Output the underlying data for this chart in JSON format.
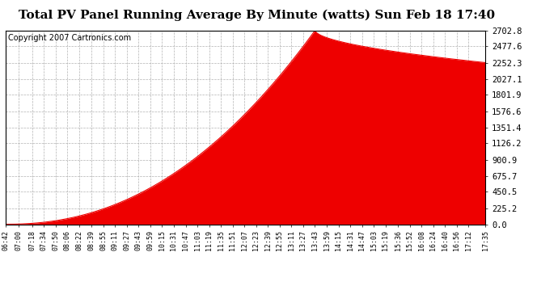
{
  "title": "Total PV Panel Running Average By Minute (watts) Sun Feb 18 17:40",
  "copyright": "Copyright 2007 Cartronics.com",
  "fill_color": "#ee0000",
  "line_color": "#ee0000",
  "bg_color": "#ffffff",
  "grid_color": "#aaaaaa",
  "border_color": "#000000",
  "ytick_labels": [
    "0.0",
    "225.2",
    "450.5",
    "675.7",
    "900.9",
    "1126.2",
    "1351.4",
    "1576.6",
    "1801.9",
    "2027.1",
    "2252.3",
    "2477.6",
    "2702.8"
  ],
  "ytick_values": [
    0.0,
    225.2,
    450.5,
    675.7,
    900.9,
    1126.2,
    1351.4,
    1576.6,
    1801.9,
    2027.1,
    2252.3,
    2477.6,
    2702.8
  ],
  "ymax": 2702.8,
  "xtick_labels": [
    "06:42",
    "07:00",
    "07:18",
    "07:34",
    "07:50",
    "08:06",
    "08:22",
    "08:39",
    "08:55",
    "09:11",
    "09:27",
    "09:43",
    "09:59",
    "10:15",
    "10:31",
    "10:47",
    "11:03",
    "11:19",
    "11:35",
    "11:51",
    "12:07",
    "12:23",
    "12:39",
    "12:55",
    "13:11",
    "13:27",
    "13:43",
    "13:59",
    "14:15",
    "14:31",
    "14:47",
    "15:03",
    "15:19",
    "15:36",
    "15:52",
    "16:08",
    "16:24",
    "16:40",
    "16:56",
    "17:12",
    "17:35"
  ],
  "title_fontsize": 11,
  "copyright_fontsize": 7
}
